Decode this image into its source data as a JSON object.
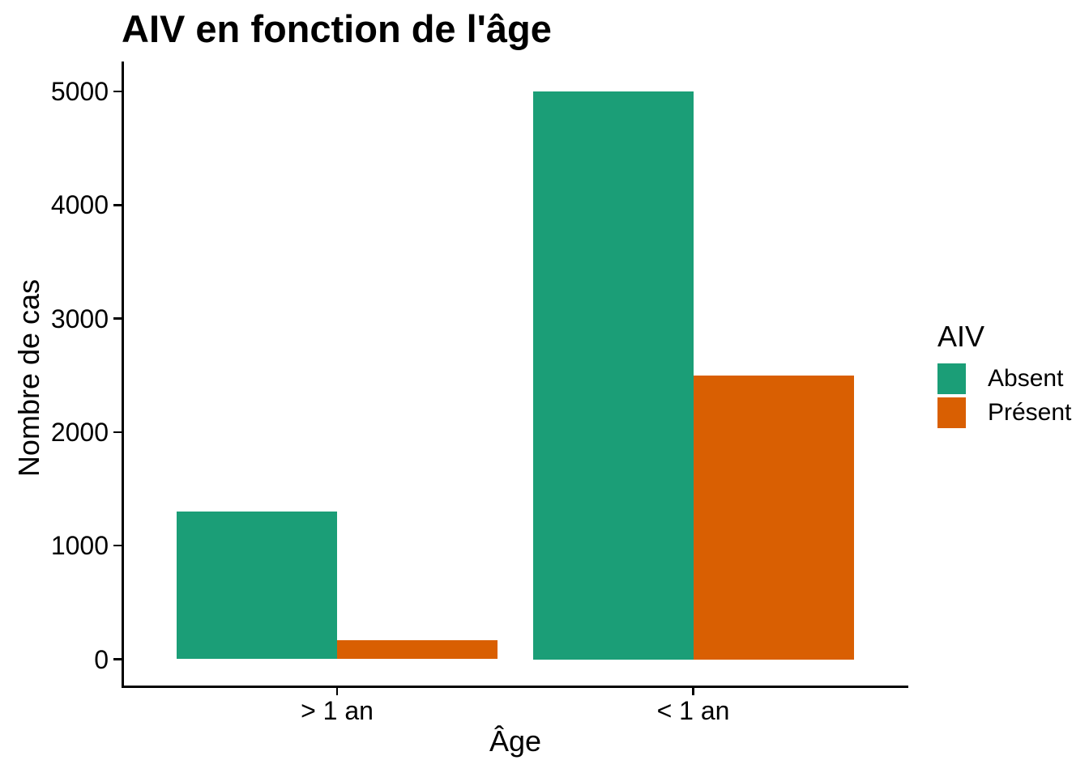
{
  "figure": {
    "title": "AIV en fonction de l'âge",
    "x_axis": {
      "label": "Âge",
      "tick_labels": [
        "> 1 an",
        "< 1 an"
      ]
    },
    "y_axis": {
      "label": "Nombre de cas",
      "tick_labels": [
        "0",
        "1000",
        "2000",
        "3000",
        "4000",
        "5000"
      ]
    },
    "legend": {
      "title": "AIV",
      "entries": [
        {
          "label": "Absent",
          "color": "#1b9e77"
        },
        {
          "label": "Présent",
          "color": "#d95f02"
        }
      ]
    }
  },
  "chart_data": {
    "type": "bar",
    "bar_layout": "dodge",
    "title": "AIV en fonction de l'âge",
    "xlabel": "Âge",
    "ylabel": "Nombre de cas",
    "categories": [
      "> 1 an",
      "< 1 an"
    ],
    "series": [
      {
        "name": "Absent",
        "color": "#1b9e77",
        "values": [
          1300,
          5000
        ]
      },
      {
        "name": "Présent",
        "color": "#d95f02",
        "values": [
          170,
          2500
        ]
      }
    ],
    "ylim": [
      0,
      5000
    ],
    "yticks": [
      0,
      1000,
      2000,
      3000,
      4000,
      5000
    ],
    "legend_title": "AIV",
    "legend_position": "right",
    "grid": false,
    "background_color": "#ffffff",
    "axis_color": "#000000",
    "text_color": "#000000"
  }
}
